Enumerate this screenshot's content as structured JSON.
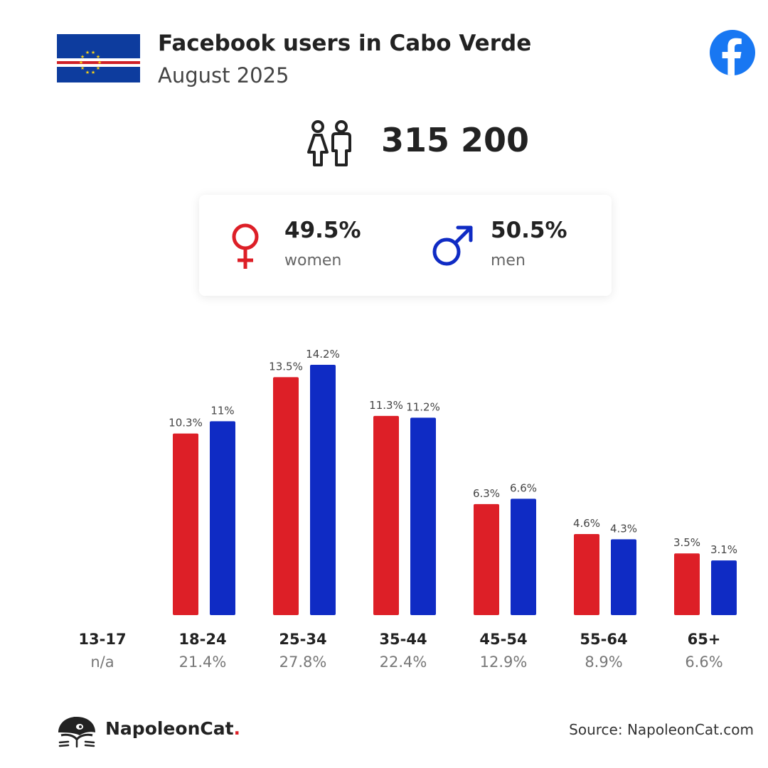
{
  "header": {
    "title": "Facebook users in Cabo Verde",
    "subtitle": "August 2025"
  },
  "total_users": "315 200",
  "gender": {
    "female": {
      "pct": "49.5%",
      "label": "women"
    },
    "male": {
      "pct": "50.5%",
      "label": "men"
    }
  },
  "colors": {
    "female": "#dd1f27",
    "male": "#0f2bc4",
    "facebook": "#1877f2"
  },
  "icons": [
    "flag-cabo-verde-icon",
    "facebook-logo-icon",
    "people-icon",
    "female-icon",
    "male-icon",
    "napoleoncat-logo-icon"
  ],
  "chart_data": {
    "type": "bar",
    "categories": [
      "13-17",
      "18-24",
      "25-34",
      "35-44",
      "45-54",
      "55-64",
      "65+"
    ],
    "category_totals": [
      "n/a",
      "21.4%",
      "27.8%",
      "22.4%",
      "12.9%",
      "8.9%",
      "6.6%"
    ],
    "series": [
      {
        "values": [
          null,
          10.3,
          13.5,
          11.3,
          6.3,
          4.6,
          3.5
        ],
        "labels": [
          "",
          "10.3%",
          "13.5%",
          "11.3%",
          "6.3%",
          "4.6%",
          "3.5%"
        ]
      },
      {
        "values": [
          null,
          11,
          14.2,
          11.2,
          6.6,
          4.3,
          3.1
        ],
        "labels": [
          "",
          "11%",
          "14.2%",
          "11.2%",
          "6.6%",
          "4.3%",
          "3.1%"
        ]
      }
    ],
    "ylim": [
      0,
      14.2
    ],
    "grid": false,
    "legend": "none"
  },
  "footer": {
    "brand": "NapoleonCat",
    "brand_dot": ".",
    "source": "Source: NapoleonCat.com"
  }
}
